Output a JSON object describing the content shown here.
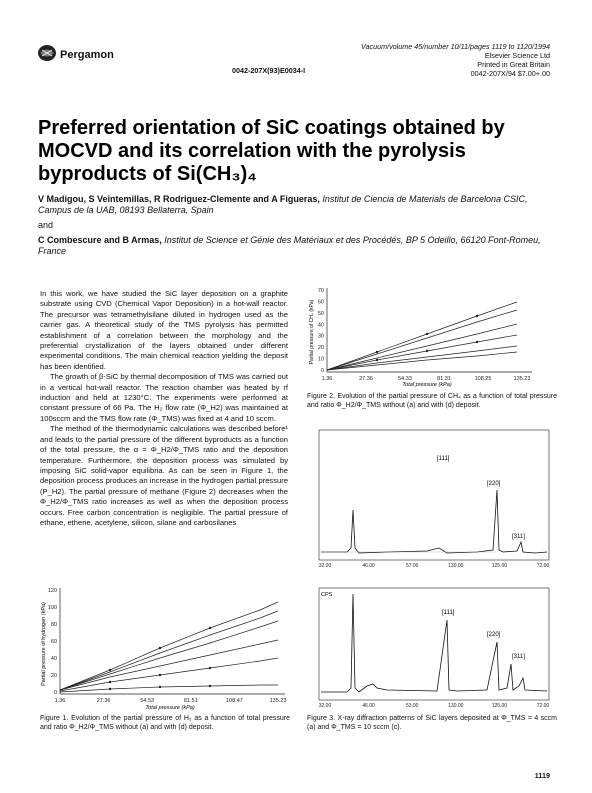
{
  "header": {
    "publisher": "Pergamon",
    "journal_line": "Vacuum/volume 45/number 10/11/pages 1119 to 1120/1994",
    "copyright_line": "Elsevier Science Ltd",
    "printed_line": "Printed in Great Britain",
    "price_line": "0042-207X/94 $7.00+.00",
    "doi_line": "0042-207X(93)E0034-I"
  },
  "title": {
    "line1": "Preferred orientation of SiC coatings obtained by",
    "line2": "MOCVD and its correlation with the pyrolysis",
    "line3": "byproducts of Si(CH₃)₄"
  },
  "authors": {
    "group1_names": "V Madigou, S Veintemillas, R Rodriguez-Clemente and A Figueras,",
    "group1_affil": "Institut de Ciencia de Materials de Barcelona CSIC, Campus de la UAB, 08193 Bellaterra, Spain",
    "and": "and",
    "group2_names": "C Combescure and B Armas,",
    "group2_affil": "Institut de Science et Génie des Matériaux et des Procédés, BP 5 Odeillo, 66120 Font-Romeu, France"
  },
  "body": {
    "para1": "In this work, we have studied the SiC layer deposition on a graphite substrate using CVD (Chemical Vapor Deposition) in a hot-wall reactor. The precursor was tetramethylsilane diluted in hydrogen used as the carrier gas. A theoretical study of the TMS pyrolysis has permitted establishment of a correlation between the morphology and the preferential crystallization of the layers obtained under different experimental conditions. The main chemical reaction yielding the deposit has been identified.",
    "para2": "The growth of β-SiC by thermal decomposition of TMS was carried out in a vertical hot-wall reactor. The reaction chamber was heated by rf induction and held at 1230°C. The experiments were performed at constant pressure of 66 Pa. The H₂ flow rate (Φ_H2) was maintained at 100sccm and the TMS flow rate (Φ_TMS) was fixed at 4 and 10 sccm.",
    "para3": "The method of the thermodynamic calculations was described before¹ and leads to the partial pressure of the different byproducts as a function of the total pressure, the α = Φ_H2/Φ_TMS ratio and the deposition temperature. Furthermore, the deposition process was simulated by imposing SiC solid-vapor equilibria. As can be seen in Figure 1, the deposition process produces an increase in the hydrogen partial pressure (P_H2). The partial pressure of methane (Figure 2) decreases when the Φ_H2/Φ_TMS ratio increases as well as when the deposition process occurs. Free carbon concentration is negligible. The partial pressure of ethane, ethene, acetylene, silicon, silane and carbosilanes"
  },
  "fig1": {
    "ylabel": "Partial pressure of hydrogen (kPa)",
    "xlabel": "Total pressure (kPa)",
    "yticks": [
      "120",
      "100",
      "80",
      "60",
      "40",
      "20",
      "0"
    ],
    "xticks": [
      "1.36",
      "27.36",
      "54.53",
      "81.51",
      "108.47",
      "135.23"
    ],
    "caption": "Figure 1. Evolution of the partial pressure of H₂ as a function of total pressure and ratio Φ_H2/Φ_TMS without (a) and with (d) deposit."
  },
  "fig2": {
    "ylabel": "Partial pressure of CH₄ (kPa)",
    "xlabel": "Total pressure (kPa)",
    "yticks": [
      "70",
      "60",
      "50",
      "40",
      "30",
      "20",
      "10",
      "0"
    ],
    "xticks": [
      "1.36",
      "27.36",
      "54.33",
      "81.31",
      "108.25",
      "135.23"
    ],
    "caption": "Figure 2. Evolution of the partial pressure of CH₄ as a function of total pressure and ratio Φ_H2/Φ_TMS without (a) and with (d) deposit."
  },
  "fig3": {
    "caption": "Figure 3. X-ray diffraction patterns of SiC layers deposited at Φ_TMS = 4 sccm (a) and Φ_TMS = 10 sccm (c).",
    "top_peaks": [
      "[111]",
      "[220]",
      "[311]"
    ],
    "top_xticks": [
      "32.00",
      "46.00",
      "57.00",
      "130.00",
      "125.00",
      "72.00"
    ],
    "bottom_peaks": [
      "[111]",
      "[220]",
      "[311]"
    ],
    "bottom_xticks": [
      "32.00",
      "46.00",
      "53.00",
      "130.00",
      "125.00",
      "72.00"
    ],
    "bottom_ylabel": "CPS"
  },
  "footer": {
    "page_number": "1119"
  }
}
